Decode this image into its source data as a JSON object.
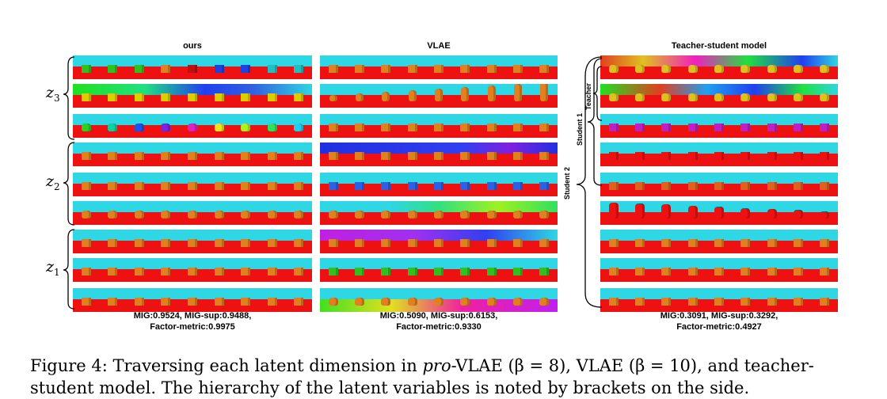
{
  "panels": [
    {
      "title": "ours",
      "metric_line1": "MIG:0.9524, MIG-sup:0.9488,",
      "metric_line2": "Factor-metric:0.9975",
      "rows": [
        {
          "sky": "#2fd6e3",
          "floor": "#ee1111",
          "obj": "#30c020",
          "shape": "cube",
          "tint": "mixed-cubes"
        },
        {
          "sky": "#2fd6e3",
          "floor": "#ee1111",
          "obj": "#ddcc00",
          "shape": "cube",
          "tint": "gradient-green-blue"
        },
        {
          "sky": "#2fd6e3",
          "floor": "#ee1111",
          "obj": "#e08020",
          "shape": "cyl",
          "tint": "hue-shift"
        },
        {
          "sky": "#2fd6e3",
          "floor": "#ee1111",
          "obj": "#e08020",
          "shape": "cube",
          "tint": "plain"
        },
        {
          "sky": "#2fd6e3",
          "floor": "#ee1111",
          "obj": "#e08020",
          "shape": "cube",
          "tint": "plain"
        },
        {
          "sky": "#2fd6e3",
          "floor": "#ee1111",
          "obj": "#e08020",
          "shape": "cyl",
          "tint": "plain"
        },
        {
          "sky": "#2fd6e3",
          "floor": "#ee1111",
          "obj": "#e08020",
          "shape": "cube",
          "tint": "plain"
        },
        {
          "sky": "#2fd6e3",
          "floor": "#ee1111",
          "obj": "#e08020",
          "shape": "cube",
          "tint": "plain"
        },
        {
          "sky": "#2fd6e3",
          "floor": "#ee1111",
          "obj": "#e08020",
          "shape": "cube",
          "tint": "plain"
        }
      ]
    },
    {
      "title": "VLAE",
      "metric_line1": "MIG:0.5090, MIG-sup:0.6153,",
      "metric_line2": "Factor-metric:0.9330",
      "rows": [
        {
          "sky": "#2fd6e3",
          "floor": "#ee1111",
          "obj": "#e08020",
          "shape": "cube",
          "tint": "plain"
        },
        {
          "sky": "#2fd6e3",
          "floor": "#ee1111",
          "obj": "#e08020",
          "shape": "cyl",
          "tint": "grow"
        },
        {
          "sky": "#2fd6e3",
          "floor": "#ee1111",
          "obj": "#e08020",
          "shape": "cube",
          "tint": "plain"
        },
        {
          "sky": "#1f3fe0",
          "floor": "#ee1111",
          "obj": "#e08020",
          "shape": "cube",
          "tint": "blue-sky"
        },
        {
          "sky": "#2fd6e3",
          "floor": "#ee1111",
          "obj": "#3060e0",
          "shape": "cube",
          "tint": "plain"
        },
        {
          "sky": "#2fd6e3",
          "floor": "#ee1111",
          "obj": "#e08020",
          "shape": "cyl",
          "tint": "green-sky"
        },
        {
          "sky": "#c020e0",
          "floor": "#ee1111",
          "obj": "#e08020",
          "shape": "cube",
          "tint": "purple-sky"
        },
        {
          "sky": "#2fd6e3",
          "floor": "#ee1111",
          "obj": "#30c020",
          "shape": "cube",
          "tint": "plain"
        },
        {
          "sky": "#2fd6e3",
          "floor": "#ee1111",
          "obj": "#e08020",
          "shape": "cyl",
          "tint": "floor-gradient"
        }
      ]
    },
    {
      "title": "Teacher-student model",
      "metric_line1": "MIG:0.3091, MIG-sup:0.3292,",
      "metric_line2": "Factor-metric:0.4927",
      "rows": [
        {
          "sky": "#2fd6e3",
          "floor": "#ee1111",
          "obj": "#e0c020",
          "shape": "cyl",
          "tint": "rainbow-sky"
        },
        {
          "sky": "#2fd6e3",
          "floor": "#ee1111",
          "obj": "#e0c020",
          "shape": "cyl",
          "tint": "rainbow-sky2"
        },
        {
          "sky": "#2fd6e3",
          "floor": "#ee1111",
          "obj": "#c020c0",
          "shape": "cube",
          "tint": "plain"
        },
        {
          "sky": "#2fd6e3",
          "floor": "#ee1111",
          "obj": "#ee1111",
          "shape": "cube",
          "tint": "plain"
        },
        {
          "sky": "#2fd6e3",
          "floor": "#ee1111",
          "obj": "#e06020",
          "shape": "cube",
          "tint": "plain"
        },
        {
          "sky": "#2fd6e3",
          "floor": "#ee1111",
          "obj": "#ee1111",
          "shape": "cyl",
          "tint": "tall"
        },
        {
          "sky": "#2fd6e3",
          "floor": "#ee1111",
          "obj": "#e08020",
          "shape": "cube",
          "tint": "plain"
        },
        {
          "sky": "#2fd6e3",
          "floor": "#ee1111",
          "obj": "#e08020",
          "shape": "cube",
          "tint": "plain"
        },
        {
          "sky": "#2fd6e3",
          "floor": "#ee1111",
          "obj": "#e08020",
          "shape": "cube",
          "tint": "plain"
        }
      ]
    }
  ],
  "zlabels": {
    "z3": "z",
    "z3_sub": "3",
    "z2": "z",
    "z2_sub": "2",
    "z1": "z",
    "z1_sub": "1"
  },
  "side_labels": {
    "teacher": "Teacher",
    "student1": "Student 1",
    "student2": "Student 2"
  },
  "caption": {
    "prefix": "Figure 4: Traversing each latent dimension in ",
    "pro": "pro",
    "middle": "-VLAE (β = 8), VLAE (β = 10), and teacher-",
    "line2": "student model. The hierarchy of the latent variables is noted by brackets on the side."
  }
}
